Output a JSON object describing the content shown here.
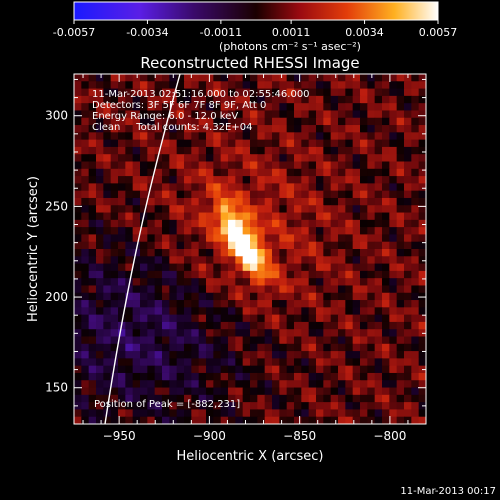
{
  "chart_data": {
    "type": "heatmap",
    "title": "Reconstructed RHESSI Image",
    "xlabel": "Heliocentric X (arcsec)",
    "ylabel": "Heliocentric Y (arcsec)",
    "xlim": [
      -975,
      -780
    ],
    "ylim": [
      130,
      323
    ],
    "xticks": [
      -950,
      -900,
      -850,
      -800
    ],
    "yticks": [
      150,
      200,
      250,
      300
    ],
    "colorbar": {
      "ticks": [
        "-0.0057",
        "-0.0034",
        "-0.0011",
        "0.0011",
        "0.0034",
        "0.0057"
      ],
      "min": -0.0057,
      "max": 0.0057,
      "unit_label": "(photons cm⁻² s⁻¹ asec⁻²)"
    },
    "annotations": [
      "11-Mar-2013 02:51:16.000 to 02:55:46.000",
      "Detectors: 3F 5F 6F 7F 8F 9F, Att 0",
      "Energy Range: 6.0 - 12.0 keV",
      "Clean     Total counts: 4.32E+04"
    ],
    "peak_label": "Position of Peak = [-882,231]",
    "peak": {
      "x": -882,
      "y": 231
    },
    "footer_timestamp": "11-Mar-2013 00:17"
  }
}
